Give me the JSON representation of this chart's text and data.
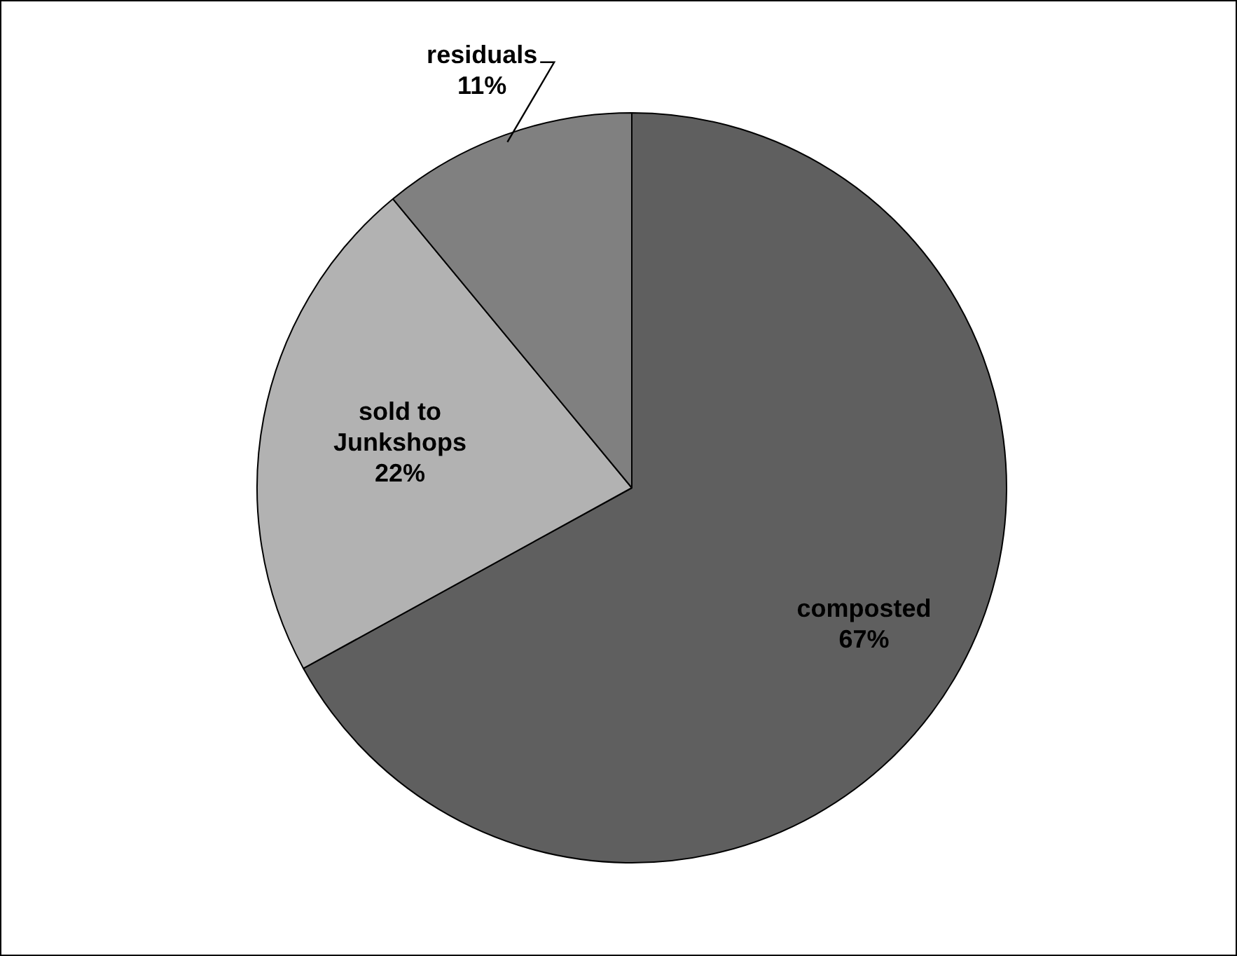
{
  "chart_data": {
    "type": "pie",
    "categories": [
      "composted",
      "sold to Junkshops",
      "residuals"
    ],
    "values": [
      67,
      22,
      11
    ],
    "colors": [
      "#5f5f5f",
      "#b2b2b2",
      "#808080"
    ],
    "value_labels": [
      "67%",
      "22%",
      "11%"
    ],
    "legend": false
  }
}
